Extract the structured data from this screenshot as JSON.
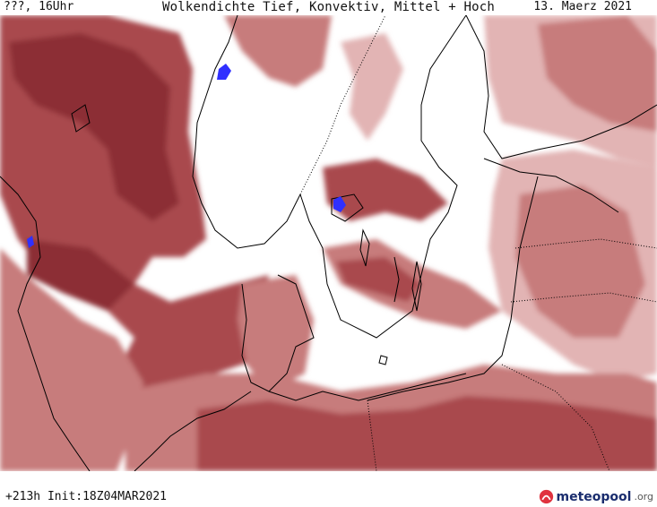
{
  "header": {
    "run_label": "???, 16Uhr",
    "title": "Wolkendichte  Tief, Konvektiv, Mittel + Hoch",
    "valid_date": "13. Maerz 2021"
  },
  "footer": {
    "forecast_info": "+213h  Init:18Z04MAR2021",
    "brand_name": "meteopool",
    "brand_suffix": ".org"
  },
  "colors": {
    "cloud_light": "#e2b4b4",
    "cloud_medium": "#c77c7c",
    "cloud_dense": "#a9494e",
    "cloud_very_dense": "#8c2f34",
    "coastline": "#000000",
    "highlight": "#3030ff",
    "brand": "#1a2d6e"
  }
}
